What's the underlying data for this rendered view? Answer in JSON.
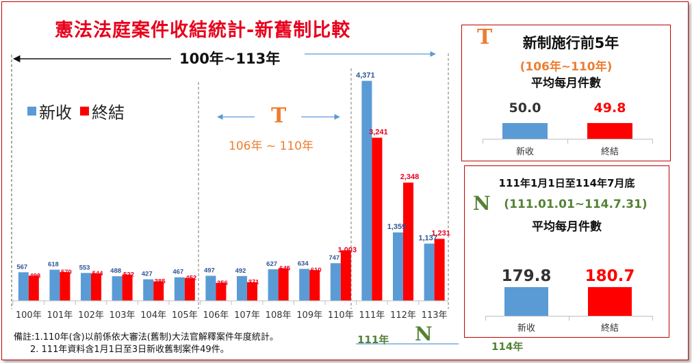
{
  "title": "憲法法庭案件收結統計-新舊制比較",
  "overall_range": "100年~113年",
  "legend": {
    "new_label": "新收",
    "closed_label": "終結"
  },
  "period_before": {
    "icon": "T",
    "range": "106年 ~ 110年"
  },
  "colors": {
    "new": "#5b9bd5",
    "closed": "#ff0000",
    "title": "#e8001c",
    "orange": "#ed7d31",
    "green": "#548235",
    "frame": "#c00000"
  },
  "chart_data": {
    "type": "bar",
    "categories": [
      "100年",
      "101年",
      "102年",
      "103年",
      "104年",
      "105年",
      "106年",
      "107年",
      "108年",
      "109年",
      "110年",
      "111年",
      "112年",
      "113年"
    ],
    "series": [
      {
        "name": "新收",
        "values": [
          567,
          618,
          553,
          488,
          427,
          467,
          497,
          492,
          627,
          634,
          747,
          4371,
          1359,
          1137
        ]
      },
      {
        "name": "終結",
        "values": [
          498,
          570,
          544,
          522,
          385,
          452,
          356,
          371,
          645,
          610,
          1003,
          3241,
          2348,
          1231
        ]
      }
    ],
    "data_labels": {
      "new": [
        "567",
        "618",
        "553",
        "488",
        "427",
        "467",
        "497",
        "492",
        "627",
        "634",
        "747",
        "4,371",
        "1,359",
        "1,137"
      ],
      "closed": [
        "498",
        "570",
        "544",
        "522",
        "385",
        "452",
        "356",
        "371",
        "645",
        "610",
        "1,003",
        "3,241",
        "2,348",
        "1,231"
      ]
    },
    "ylim": [
      0,
      4700
    ]
  },
  "footnotes": [
    "備註:1.110年(含)以前係依大審法(舊制)大法官解釋案件年度統計。",
    "2. 111年資料含1月1日至3日新收舊制案件49件。"
  ],
  "new_system_range": {
    "start": "111年",
    "icon": "N",
    "end": "114年"
  },
  "panel_before": {
    "icon": "T",
    "title": "新制施行前5年",
    "range": "(106年~110年)",
    "subtitle": "平均每月件數",
    "new_value": "50.0",
    "closed_value": "49.8",
    "new_label": "新收",
    "closed_label": "終結",
    "chart_data": {
      "type": "bar",
      "categories": [
        "新收",
        "終結"
      ],
      "values": [
        50.0,
        49.8
      ]
    }
  },
  "panel_after": {
    "title": "111年1月1日至114年7月底",
    "icon": "N",
    "range": "(111.01.01~114.7.31)",
    "subtitle": "平均每月件數",
    "new_value": "179.8",
    "closed_value": "180.7",
    "new_label": "新收",
    "closed_label": "終結",
    "chart_data": {
      "type": "bar",
      "categories": [
        "新收",
        "終結"
      ],
      "values": [
        179.8,
        180.7
      ]
    }
  }
}
